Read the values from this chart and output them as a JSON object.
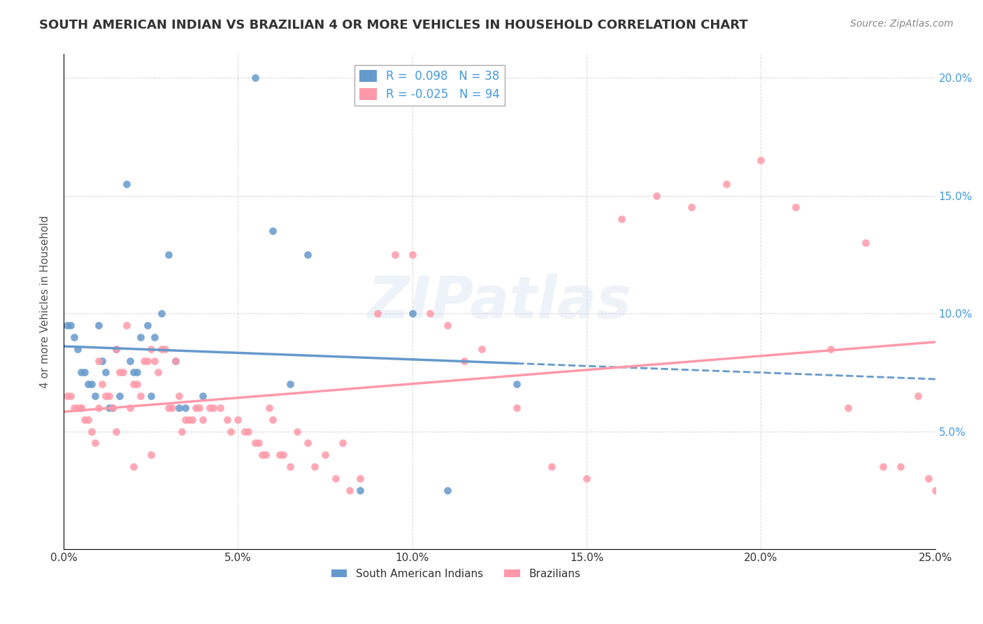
{
  "title": "SOUTH AMERICAN INDIAN VS BRAZILIAN 4 OR MORE VEHICLES IN HOUSEHOLD CORRELATION CHART",
  "source": "Source: ZipAtlas.com",
  "xlabel": "",
  "ylabel": "4 or more Vehicles in Household",
  "xlim": [
    0.0,
    0.25
  ],
  "ylim": [
    0.0,
    0.21
  ],
  "xticks": [
    0.0,
    0.05,
    0.1,
    0.15,
    0.2,
    0.25
  ],
  "xticklabels": [
    "0.0%",
    "5.0%",
    "10.0%",
    "15.0%",
    "20.0%",
    "25.0%"
  ],
  "yticks": [
    0.0,
    0.05,
    0.1,
    0.15,
    0.2
  ],
  "right_yticks": [
    0.05,
    0.1,
    0.15,
    0.2
  ],
  "right_yticklabels": [
    "5.0%",
    "10.0%",
    "15.0%",
    "20.0%"
  ],
  "blue_color": "#6699CC",
  "pink_color": "#FF99AA",
  "blue_label": "South American Indians",
  "pink_label": "Brazilians",
  "R_blue": 0.098,
  "N_blue": 38,
  "R_pink": -0.025,
  "N_pink": 94,
  "blue_x": [
    0.001,
    0.002,
    0.003,
    0.004,
    0.005,
    0.006,
    0.007,
    0.008,
    0.009,
    0.01,
    0.011,
    0.012,
    0.013,
    0.014,
    0.015,
    0.016,
    0.018,
    0.019,
    0.02,
    0.021,
    0.022,
    0.024,
    0.025,
    0.026,
    0.028,
    0.03,
    0.032,
    0.033,
    0.035,
    0.04,
    0.055,
    0.06,
    0.065,
    0.07,
    0.085,
    0.1,
    0.11,
    0.13
  ],
  "blue_y": [
    0.095,
    0.095,
    0.09,
    0.085,
    0.075,
    0.075,
    0.07,
    0.07,
    0.065,
    0.095,
    0.08,
    0.075,
    0.06,
    0.06,
    0.085,
    0.065,
    0.155,
    0.08,
    0.075,
    0.075,
    0.09,
    0.095,
    0.065,
    0.09,
    0.1,
    0.125,
    0.08,
    0.06,
    0.06,
    0.065,
    0.2,
    0.135,
    0.07,
    0.125,
    0.025,
    0.1,
    0.025,
    0.07
  ],
  "pink_x": [
    0.001,
    0.002,
    0.003,
    0.004,
    0.005,
    0.006,
    0.007,
    0.008,
    0.009,
    0.01,
    0.011,
    0.012,
    0.013,
    0.014,
    0.015,
    0.016,
    0.017,
    0.018,
    0.019,
    0.02,
    0.021,
    0.022,
    0.023,
    0.024,
    0.025,
    0.026,
    0.027,
    0.028,
    0.029,
    0.03,
    0.031,
    0.032,
    0.033,
    0.034,
    0.035,
    0.036,
    0.037,
    0.038,
    0.039,
    0.04,
    0.042,
    0.043,
    0.045,
    0.047,
    0.048,
    0.05,
    0.052,
    0.053,
    0.055,
    0.056,
    0.057,
    0.058,
    0.059,
    0.06,
    0.062,
    0.063,
    0.065,
    0.067,
    0.07,
    0.072,
    0.075,
    0.078,
    0.08,
    0.082,
    0.085,
    0.09,
    0.095,
    0.1,
    0.105,
    0.11,
    0.115,
    0.12,
    0.13,
    0.14,
    0.15,
    0.16,
    0.17,
    0.18,
    0.19,
    0.2,
    0.21,
    0.22,
    0.225,
    0.23,
    0.235,
    0.24,
    0.245,
    0.248,
    0.25,
    0.005,
    0.01,
    0.015,
    0.02,
    0.025
  ],
  "pink_y": [
    0.065,
    0.065,
    0.06,
    0.06,
    0.06,
    0.055,
    0.055,
    0.05,
    0.045,
    0.08,
    0.07,
    0.065,
    0.065,
    0.06,
    0.085,
    0.075,
    0.075,
    0.095,
    0.06,
    0.07,
    0.07,
    0.065,
    0.08,
    0.08,
    0.085,
    0.08,
    0.075,
    0.085,
    0.085,
    0.06,
    0.06,
    0.08,
    0.065,
    0.05,
    0.055,
    0.055,
    0.055,
    0.06,
    0.06,
    0.055,
    0.06,
    0.06,
    0.06,
    0.055,
    0.05,
    0.055,
    0.05,
    0.05,
    0.045,
    0.045,
    0.04,
    0.04,
    0.06,
    0.055,
    0.04,
    0.04,
    0.035,
    0.05,
    0.045,
    0.035,
    0.04,
    0.03,
    0.045,
    0.025,
    0.03,
    0.1,
    0.125,
    0.125,
    0.1,
    0.095,
    0.08,
    0.085,
    0.06,
    0.035,
    0.03,
    0.14,
    0.15,
    0.145,
    0.155,
    0.165,
    0.145,
    0.085,
    0.06,
    0.13,
    0.035,
    0.035,
    0.065,
    0.03,
    0.025,
    0.06,
    0.06,
    0.05,
    0.035,
    0.04
  ],
  "watermark": "ZIPatlas",
  "background_color": "#ffffff",
  "grid_color": "#cccccc"
}
